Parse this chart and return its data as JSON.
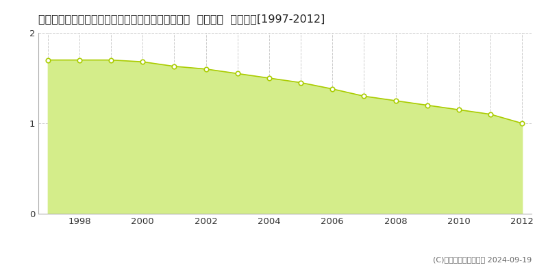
{
  "title": "青森県下北郡東通村大字小田野沢字南通２番２０５  基準地価  地価推移[1997-2012]",
  "years": [
    1997,
    1998,
    1999,
    2000,
    2001,
    2002,
    2003,
    2004,
    2005,
    2006,
    2007,
    2008,
    2009,
    2010,
    2011,
    2012
  ],
  "values": [
    1.7,
    1.7,
    1.7,
    1.68,
    1.63,
    1.6,
    1.55,
    1.5,
    1.45,
    1.38,
    1.3,
    1.25,
    1.2,
    1.15,
    1.1,
    1.0
  ],
  "line_color": "#aacc00",
  "fill_color": "#d4ed8a",
  "marker_face": "#ffffff",
  "marker_edge": "#aacc00",
  "bg_color": "#ffffff",
  "grid_color": "#cccccc",
  "axis_color": "#aaaaaa",
  "ylim": [
    0,
    2
  ],
  "yticks": [
    0,
    1,
    2
  ],
  "legend_color": "#ccdd44",
  "copyright": "(C)土地価格ドットコム 2024-09-19",
  "title_fontsize": 11.5,
  "tick_fontsize": 9.5,
  "legend_fontsize": 9.5
}
